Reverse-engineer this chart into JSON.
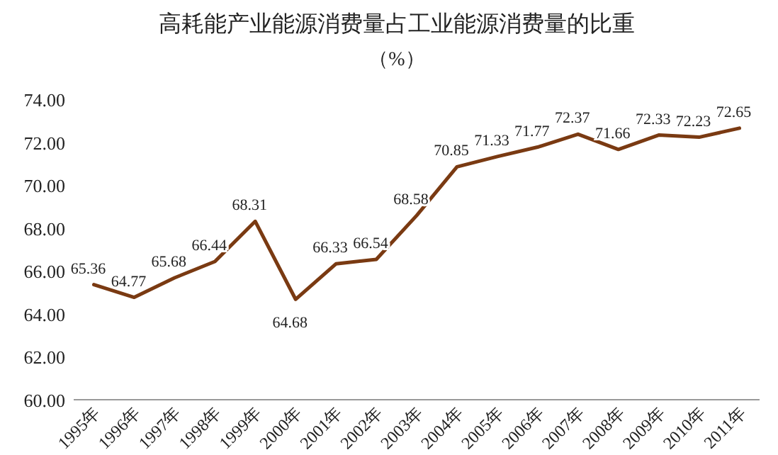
{
  "chart_data": {
    "type": "line",
    "title": "高耗能产业能源消费量占工业能源消费量的比重",
    "subtitle": "（%）",
    "categories": [
      "1995年",
      "1996年",
      "1997年",
      "1998年",
      "1999年",
      "2000年",
      "2001年",
      "2002年",
      "2003年",
      "2004年",
      "2005年",
      "2006年",
      "2007年",
      "2008年",
      "2009年",
      "2010年",
      "2011年"
    ],
    "series": [
      {
        "color": "#7a3a12",
        "values": [
          65.36,
          64.77,
          65.68,
          66.44,
          68.31,
          64.68,
          66.33,
          66.54,
          68.58,
          70.85,
          71.33,
          71.77,
          72.37,
          71.66,
          72.33,
          72.23,
          72.65
        ]
      }
    ],
    "ylim": [
      60,
      74
    ],
    "yticks": [
      {
        "value": 60,
        "label": "60.00"
      },
      {
        "value": 62,
        "label": "62.00"
      },
      {
        "value": 64,
        "label": "64.00"
      },
      {
        "value": 66,
        "label": "66.00"
      },
      {
        "value": 68,
        "label": "68.00"
      },
      {
        "value": 70,
        "label": "70.00"
      },
      {
        "value": 72,
        "label": "72.00"
      },
      {
        "value": 74,
        "label": "74.00"
      }
    ],
    "data_labels": true,
    "grid": false,
    "marker": "none",
    "line_style": "solid"
  }
}
